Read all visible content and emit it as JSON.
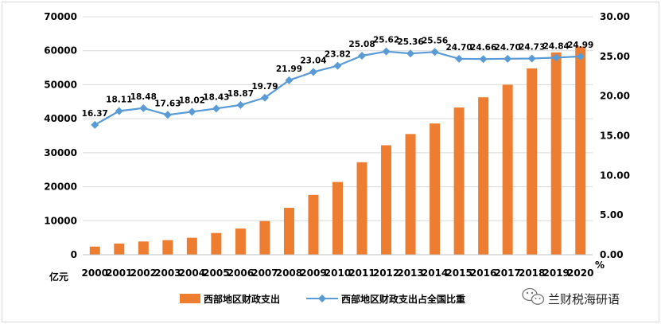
{
  "chart_data": {
    "type": "bar",
    "categories": [
      "2000",
      "2001",
      "2002",
      "2003",
      "2004",
      "2005",
      "2006",
      "2007",
      "2008",
      "2009",
      "2010",
      "2011",
      "2012",
      "2013",
      "2014",
      "2015",
      "2016",
      "2017",
      "2018",
      "2019",
      "2020"
    ],
    "series": [
      {
        "name": "西部地区财政支出",
        "type": "bar",
        "axis": "left",
        "color": "#ed7d31",
        "values": [
          2400,
          3300,
          3900,
          4300,
          5000,
          6400,
          7700,
          9900,
          13800,
          17600,
          21400,
          27200,
          32200,
          35500,
          38600,
          43300,
          46300,
          50000,
          54800,
          59500,
          61200
        ]
      },
      {
        "name": "西部地区财政支出占全国比重",
        "type": "line",
        "axis": "right",
        "color": "#5b9bd5",
        "values": [
          16.37,
          18.11,
          18.48,
          17.63,
          18.02,
          18.43,
          18.87,
          19.79,
          21.99,
          23.04,
          23.82,
          25.08,
          25.62,
          25.36,
          25.56,
          24.7,
          24.66,
          24.7,
          24.73,
          24.84,
          24.99
        ]
      }
    ],
    "y_left": {
      "unit": "亿元",
      "ylim": [
        0,
        70000
      ],
      "ticks": [
        "0",
        "10000",
        "20000",
        "30000",
        "40000",
        "50000",
        "60000",
        "70000"
      ]
    },
    "y_right": {
      "unit": "%",
      "ylim": [
        0,
        30
      ],
      "ticks": [
        "0.00",
        "5.00",
        "10.00",
        "15.00",
        "20.00",
        "25.00",
        "30.00"
      ]
    },
    "data_labels": [
      "16.37",
      "18.11",
      "18.48",
      "17.63",
      "18.02",
      "18.43",
      "18.87",
      "19.79",
      "21.99",
      "23.04",
      "23.82",
      "25.08",
      "25.62",
      "25.36",
      "25.56",
      "24.70",
      "24.66",
      "24.70",
      "24.73",
      "24.84",
      "24.99"
    ],
    "grid": true,
    "legend_position": "bottom-center"
  },
  "watermark": {
    "text": "兰财税海研语",
    "icon": "wechat-icon"
  }
}
